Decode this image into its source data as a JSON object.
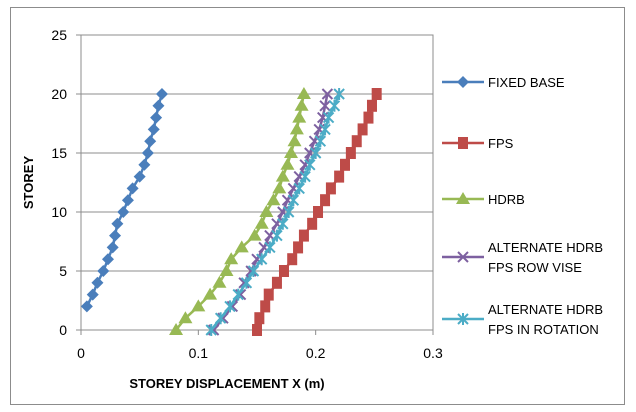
{
  "chart_data": {
    "type": "line",
    "xlabel": "STOREY DISPLACEMENT X  (m)",
    "ylabel": "STOREY",
    "xlim": [
      0,
      0.3
    ],
    "ylim": [
      0,
      25
    ],
    "xticks": [
      "0",
      "0.1",
      "0.2",
      "0.3"
    ],
    "yticks": [
      "0",
      "5",
      "10",
      "15",
      "20",
      "25"
    ],
    "grid": "horizontal",
    "legend": "right",
    "series": [
      {
        "name": "FIXED BASE",
        "color": "#4a7ebb",
        "marker": "diamond",
        "points": [
          [
            0.005,
            2
          ],
          [
            0.01,
            3
          ],
          [
            0.014,
            4
          ],
          [
            0.019,
            5
          ],
          [
            0.023,
            6
          ],
          [
            0.027,
            7
          ],
          [
            0.029,
            8
          ],
          [
            0.031,
            9
          ],
          [
            0.036,
            10
          ],
          [
            0.04,
            11
          ],
          [
            0.044,
            12
          ],
          [
            0.05,
            13
          ],
          [
            0.054,
            14
          ],
          [
            0.057,
            15
          ],
          [
            0.059,
            16
          ],
          [
            0.062,
            17
          ],
          [
            0.064,
            18
          ],
          [
            0.066,
            19
          ],
          [
            0.069,
            20
          ]
        ]
      },
      {
        "name": "FPS",
        "color": "#be4b48",
        "marker": "square",
        "points": [
          [
            0.15,
            0
          ],
          [
            0.152,
            1
          ],
          [
            0.157,
            2
          ],
          [
            0.16,
            3
          ],
          [
            0.167,
            4
          ],
          [
            0.173,
            5
          ],
          [
            0.18,
            6
          ],
          [
            0.185,
            7
          ],
          [
            0.19,
            8
          ],
          [
            0.197,
            9
          ],
          [
            0.202,
            10
          ],
          [
            0.208,
            11
          ],
          [
            0.213,
            12
          ],
          [
            0.22,
            13
          ],
          [
            0.225,
            14
          ],
          [
            0.23,
            15
          ],
          [
            0.235,
            16
          ],
          [
            0.24,
            17
          ],
          [
            0.245,
            18
          ],
          [
            0.248,
            19
          ],
          [
            0.252,
            20
          ]
        ]
      },
      {
        "name": "HDRB",
        "color": "#98b954",
        "marker": "triangle",
        "points": [
          [
            0.081,
            0
          ],
          [
            0.089,
            1
          ],
          [
            0.1,
            2
          ],
          [
            0.11,
            3
          ],
          [
            0.118,
            4
          ],
          [
            0.124,
            5
          ],
          [
            0.128,
            6
          ],
          [
            0.137,
            7
          ],
          [
            0.148,
            8
          ],
          [
            0.154,
            9
          ],
          [
            0.158,
            10
          ],
          [
            0.164,
            11
          ],
          [
            0.169,
            12
          ],
          [
            0.172,
            13
          ],
          [
            0.176,
            14
          ],
          [
            0.179,
            15
          ],
          [
            0.182,
            16
          ],
          [
            0.184,
            17
          ],
          [
            0.186,
            18
          ],
          [
            0.188,
            19
          ],
          [
            0.19,
            20
          ]
        ]
      },
      {
        "name": "ALTERNATE HDRB FPS ROW VISE",
        "color": "#7d60a0",
        "marker": "x",
        "points": [
          [
            0.113,
            0
          ],
          [
            0.121,
            1
          ],
          [
            0.129,
            2
          ],
          [
            0.136,
            3
          ],
          [
            0.139,
            4
          ],
          [
            0.145,
            5
          ],
          [
            0.15,
            6
          ],
          [
            0.156,
            7
          ],
          [
            0.161,
            8
          ],
          [
            0.167,
            9
          ],
          [
            0.172,
            10
          ],
          [
            0.176,
            11
          ],
          [
            0.181,
            12
          ],
          [
            0.186,
            13
          ],
          [
            0.191,
            14
          ],
          [
            0.195,
            15
          ],
          [
            0.199,
            16
          ],
          [
            0.203,
            17
          ],
          [
            0.206,
            18
          ],
          [
            0.208,
            19
          ],
          [
            0.21,
            20
          ]
        ]
      },
      {
        "name": "ALTERNATE HDRB FPS IN ROTATION",
        "color": "#4bacc6",
        "marker": "star",
        "points": [
          [
            0.111,
            0
          ],
          [
            0.119,
            1
          ],
          [
            0.127,
            2
          ],
          [
            0.134,
            3
          ],
          [
            0.141,
            4
          ],
          [
            0.147,
            5
          ],
          [
            0.154,
            6
          ],
          [
            0.161,
            7
          ],
          [
            0.167,
            8
          ],
          [
            0.172,
            9
          ],
          [
            0.177,
            10
          ],
          [
            0.181,
            11
          ],
          [
            0.186,
            12
          ],
          [
            0.191,
            13
          ],
          [
            0.195,
            14
          ],
          [
            0.2,
            15
          ],
          [
            0.204,
            16
          ],
          [
            0.208,
            17
          ],
          [
            0.211,
            18
          ],
          [
            0.216,
            19
          ],
          [
            0.22,
            20
          ]
        ]
      }
    ],
    "legend_lines": [
      [
        "FIXED BASE"
      ],
      [
        "FPS"
      ],
      [
        "HDRB"
      ],
      [
        "ALTERNATE HDRB",
        "FPS ROW VISE"
      ],
      [
        "ALTERNATE HDRB",
        "FPS IN ROTATION"
      ]
    ]
  }
}
